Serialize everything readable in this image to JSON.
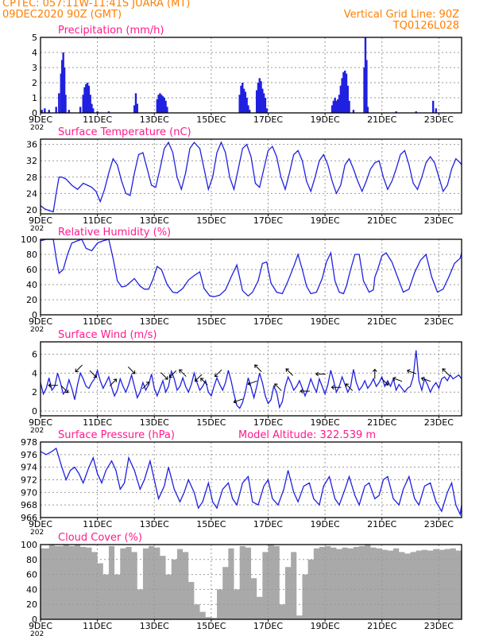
{
  "header": {
    "line1_left": "CPTEC:   057:11W-11:41S  JUARA (MT)",
    "line2_left": "09DEC2020 90Z (GMT)",
    "line1_right": "Vertical Grid Line: 90Z",
    "line2_right": "TQ0126L028",
    "header_color": "#ff7f00",
    "title_color": "#ff1a8c",
    "series_color": "#2020e0",
    "fill_color": "#a9a9a9"
  },
  "x_axis": {
    "tick_labels": [
      "9DEC",
      "11DEC",
      "13DEC",
      "15DEC",
      "17DEC",
      "19DEC",
      "21DEC",
      "23DEC"
    ],
    "tick_days": [
      0,
      2,
      4,
      6,
      8,
      10,
      12,
      14
    ],
    "year_fragment": "202",
    "range_days": [
      0,
      14.8
    ]
  },
  "chart_data": [
    {
      "id": "precip",
      "type": "bar",
      "title": "Precipitation (mm/h)",
      "ylim": [
        0,
        5
      ],
      "yticks": [
        0,
        1,
        2,
        3,
        4,
        5
      ],
      "grid": true,
      "x": [
        0.05,
        0.15,
        0.3,
        0.55,
        0.65,
        0.72,
        0.76,
        0.8,
        0.84,
        0.88,
        1.0,
        1.4,
        1.5,
        1.55,
        1.6,
        1.65,
        1.7,
        1.75,
        1.8,
        1.85,
        2.0,
        2.4,
        3.3,
        3.35,
        3.4,
        4.1,
        4.15,
        4.2,
        4.25,
        4.3,
        4.35,
        4.4,
        4.45,
        7.0,
        7.05,
        7.1,
        7.15,
        7.2,
        7.25,
        7.3,
        7.35,
        7.6,
        7.65,
        7.7,
        7.75,
        7.8,
        7.85,
        7.9,
        7.95,
        10.25,
        10.3,
        10.35,
        10.4,
        10.45,
        10.5,
        10.55,
        10.6,
        10.65,
        10.7,
        10.75,
        10.8,
        10.85,
        11.0,
        11.38,
        11.42,
        11.46,
        11.5,
        12.5,
        13.2,
        13.8,
        13.9
      ],
      "values": [
        0.2,
        0.3,
        0.2,
        0.4,
        1.3,
        2.6,
        3.5,
        4.0,
        3.0,
        1.2,
        0.2,
        0.4,
        1.2,
        1.7,
        1.9,
        2.0,
        1.8,
        1.2,
        0.6,
        0.3,
        0.1,
        0.1,
        0.5,
        1.3,
        0.6,
        0.9,
        1.2,
        1.3,
        1.2,
        1.1,
        1.0,
        0.8,
        0.4,
        1.2,
        1.8,
        2.0,
        1.6,
        1.4,
        1.0,
        0.5,
        0.2,
        1.5,
        2.0,
        2.3,
        2.1,
        1.6,
        1.3,
        1.0,
        0.3,
        0.5,
        0.8,
        1.0,
        0.8,
        0.9,
        1.2,
        1.8,
        2.3,
        2.7,
        2.8,
        2.6,
        1.8,
        0.8,
        0.2,
        3.0,
        5.0,
        3.5,
        0.4,
        0.1,
        0.1,
        0.8,
        0.3
      ]
    },
    {
      "id": "temp",
      "type": "line",
      "title": "Surface Temperature (nC)",
      "ylim": [
        19,
        37.3
      ],
      "yticks": [
        20,
        24,
        28,
        32,
        36
      ],
      "grid": true,
      "x": [
        0,
        0.15,
        0.3,
        0.45,
        0.55,
        0.65,
        0.75,
        0.9,
        1.1,
        1.3,
        1.5,
        1.65,
        1.8,
        1.95,
        2.1,
        2.25,
        2.4,
        2.55,
        2.7,
        2.85,
        3.0,
        3.15,
        3.3,
        3.45,
        3.6,
        3.75,
        3.9,
        4.05,
        4.2,
        4.35,
        4.5,
        4.65,
        4.8,
        4.95,
        5.1,
        5.25,
        5.4,
        5.6,
        5.75,
        5.9,
        6.05,
        6.2,
        6.35,
        6.5,
        6.65,
        6.8,
        6.95,
        7.1,
        7.25,
        7.4,
        7.55,
        7.7,
        7.85,
        8.0,
        8.15,
        8.3,
        8.45,
        8.6,
        8.75,
        8.9,
        9.05,
        9.2,
        9.35,
        9.5,
        9.65,
        9.8,
        9.95,
        10.1,
        10.25,
        10.4,
        10.55,
        10.7,
        10.85,
        11.0,
        11.15,
        11.3,
        11.45,
        11.6,
        11.75,
        11.9,
        12.05,
        12.2,
        12.35,
        12.5,
        12.65,
        12.8,
        12.95,
        13.1,
        13.25,
        13.4,
        13.55,
        13.7,
        13.85,
        14.0,
        14.15,
        14.3,
        14.45,
        14.6,
        14.75,
        14.8
      ],
      "values": [
        21.0,
        20.2,
        19.8,
        19.5,
        24.0,
        28.0,
        28.0,
        27.5,
        26.0,
        25.0,
        26.5,
        26.0,
        25.5,
        24.5,
        22.0,
        25.0,
        29.0,
        32.5,
        31.0,
        27.0,
        24.0,
        23.5,
        29.0,
        33.5,
        34.0,
        30.0,
        26.0,
        25.5,
        30.0,
        35.0,
        36.5,
        34.0,
        28.0,
        25.0,
        29.0,
        35.0,
        36.5,
        35.0,
        30.0,
        25.0,
        28.0,
        34.0,
        36.5,
        34.0,
        28.0,
        25.0,
        30.0,
        35.0,
        36.0,
        33.0,
        26.5,
        25.5,
        30.0,
        34.5,
        35.5,
        33.0,
        28.0,
        25.0,
        29.0,
        33.5,
        34.5,
        32.0,
        27.0,
        24.5,
        28.0,
        32.0,
        33.5,
        31.0,
        27.0,
        24.0,
        26.0,
        31.0,
        32.5,
        30.0,
        27.0,
        24.5,
        27.0,
        30.0,
        31.5,
        32.0,
        28.0,
        25.0,
        27.0,
        30.0,
        33.5,
        34.5,
        31.0,
        26.5,
        25.0,
        28.0,
        31.5,
        33.0,
        31.5,
        28.0,
        24.5,
        26.0,
        30.0,
        32.5,
        31.5,
        31.0
      ]
    },
    {
      "id": "rh",
      "type": "line",
      "title": "Relative Humidity (%)",
      "ylim": [
        0,
        100
      ],
      "yticks": [
        0,
        20,
        40,
        60,
        80,
        100
      ],
      "grid": true,
      "x": [
        0,
        0.2,
        0.45,
        0.55,
        0.65,
        0.8,
        0.95,
        1.1,
        1.3,
        1.45,
        1.6,
        1.8,
        2.0,
        2.2,
        2.4,
        2.55,
        2.7,
        2.85,
        3.0,
        3.15,
        3.3,
        3.5,
        3.65,
        3.8,
        3.95,
        4.1,
        4.25,
        4.45,
        4.65,
        4.8,
        5.0,
        5.2,
        5.4,
        5.6,
        5.75,
        5.95,
        6.1,
        6.3,
        6.5,
        6.7,
        6.9,
        7.1,
        7.3,
        7.45,
        7.65,
        7.8,
        7.95,
        8.1,
        8.3,
        8.5,
        8.7,
        8.9,
        9.05,
        9.2,
        9.35,
        9.5,
        9.7,
        9.9,
        10.05,
        10.2,
        10.35,
        10.5,
        10.65,
        10.75,
        10.9,
        11.05,
        11.2,
        11.35,
        11.55,
        11.7,
        11.75,
        11.85,
        12.0,
        12.15,
        12.35,
        12.55,
        12.75,
        12.95,
        13.15,
        13.35,
        13.55,
        13.75,
        13.95,
        14.15,
        14.35,
        14.55,
        14.75,
        14.8
      ],
      "values": [
        98,
        100,
        100,
        75,
        55,
        60,
        80,
        95,
        98,
        100,
        88,
        85,
        95,
        98,
        100,
        75,
        45,
        37,
        38,
        43,
        48,
        38,
        34,
        34,
        47,
        64,
        60,
        40,
        30,
        29,
        35,
        46,
        52,
        57,
        35,
        25,
        24,
        26,
        33,
        50,
        66,
        32,
        25,
        30,
        45,
        68,
        70,
        42,
        30,
        28,
        45,
        64,
        80,
        60,
        38,
        28,
        30,
        48,
        70,
        82,
        45,
        30,
        28,
        38,
        60,
        80,
        80,
        45,
        30,
        33,
        50,
        60,
        78,
        82,
        70,
        50,
        30,
        34,
        56,
        72,
        80,
        50,
        30,
        34,
        50,
        68,
        75,
        82
      ]
    },
    {
      "id": "wind",
      "type": "line",
      "title": "Surface Wind (m/s)",
      "ylim": [
        -0.5,
        7.3
      ],
      "yticks": [
        0,
        2,
        4,
        6
      ],
      "grid": true,
      "x": [
        0,
        0.1,
        0.2,
        0.3,
        0.4,
        0.5,
        0.6,
        0.7,
        0.8,
        0.9,
        1.0,
        1.1,
        1.2,
        1.3,
        1.4,
        1.5,
        1.6,
        1.7,
        1.8,
        1.9,
        2.0,
        2.1,
        2.2,
        2.3,
        2.4,
        2.5,
        2.6,
        2.7,
        2.8,
        2.9,
        3.0,
        3.1,
        3.2,
        3.3,
        3.4,
        3.5,
        3.6,
        3.7,
        3.8,
        3.9,
        4.0,
        4.1,
        4.2,
        4.3,
        4.4,
        4.5,
        4.6,
        4.7,
        4.8,
        4.9,
        5.0,
        5.1,
        5.2,
        5.3,
        5.4,
        5.5,
        5.6,
        5.7,
        5.8,
        5.9,
        6.0,
        6.1,
        6.2,
        6.3,
        6.4,
        6.5,
        6.6,
        6.7,
        6.8,
        6.9,
        7.0,
        7.1,
        7.2,
        7.3,
        7.4,
        7.5,
        7.6,
        7.7,
        7.8,
        7.9,
        8.0,
        8.1,
        8.2,
        8.3,
        8.4,
        8.5,
        8.6,
        8.7,
        8.8,
        8.9,
        9.0,
        9.1,
        9.2,
        9.3,
        9.4,
        9.5,
        9.6,
        9.7,
        9.8,
        9.9,
        10.0,
        10.1,
        10.2,
        10.3,
        10.4,
        10.5,
        10.6,
        10.7,
        10.8,
        10.9,
        11.0,
        11.1,
        11.2,
        11.3,
        11.4,
        11.5,
        11.6,
        11.7,
        11.8,
        11.9,
        12.0,
        12.1,
        12.2,
        12.3,
        12.4,
        12.5,
        12.6,
        12.7,
        12.8,
        12.9,
        13.0,
        13.1,
        13.2,
        13.3,
        13.4,
        13.5,
        13.6,
        13.7,
        13.8,
        13.9,
        14.0,
        14.1,
        14.2,
        14.3,
        14.4,
        14.5,
        14.6,
        14.7,
        14.8
      ],
      "values": [
        3.0,
        1.8,
        2.4,
        3.5,
        2.2,
        2.6,
        4.0,
        3.0,
        1.8,
        2.2,
        3.3,
        2.4,
        1.2,
        2.8,
        4.0,
        3.4,
        2.6,
        2.4,
        3.0,
        3.4,
        4.3,
        3.2,
        2.4,
        3.0,
        3.6,
        2.5,
        1.6,
        2.2,
        3.4,
        2.6,
        2.0,
        2.8,
        3.8,
        2.6,
        1.4,
        2.0,
        3.0,
        2.2,
        2.8,
        3.9,
        2.4,
        1.6,
        2.4,
        3.2,
        2.0,
        2.6,
        4.2,
        3.4,
        2.2,
        2.6,
        3.5,
        2.6,
        2.0,
        2.8,
        4.0,
        3.0,
        2.2,
        2.6,
        3.2,
        2.0,
        1.6,
        2.6,
        3.5,
        2.8,
        2.2,
        3.0,
        4.3,
        3.2,
        1.8,
        0.6,
        0.3,
        0.9,
        2.0,
        3.5,
        2.5,
        1.4,
        2.6,
        4.0,
        3.0,
        1.6,
        0.8,
        1.2,
        2.6,
        2.0,
        0.4,
        1.0,
        2.6,
        3.6,
        3.0,
        2.2,
        2.6,
        3.2,
        2.4,
        1.6,
        2.4,
        3.4,
        2.6,
        2.0,
        3.4,
        2.6,
        1.8,
        2.8,
        4.3,
        3.2,
        2.0,
        2.6,
        3.6,
        2.8,
        2.0,
        2.6,
        4.4,
        3.0,
        2.2,
        2.6,
        3.2,
        2.4,
        2.8,
        3.4,
        2.6,
        3.0,
        3.6,
        2.6,
        3.2,
        2.6,
        3.4,
        2.2,
        2.8,
        2.4,
        2.0,
        2.4,
        2.6,
        3.6,
        6.4,
        3.2,
        2.2,
        3.4,
        2.8,
        2.0,
        2.6,
        3.0,
        2.4,
        3.4,
        3.6,
        3.2,
        3.8,
        3.4,
        3.6,
        3.8,
        3.4
      ],
      "arrows": [
        {
          "x": 0.45,
          "dir_deg": 180
        },
        {
          "x": 0.85,
          "dir_deg": 315
        },
        {
          "x": 1.35,
          "dir_deg": 225
        },
        {
          "x": 1.85,
          "dir_deg": 315
        },
        {
          "x": 2.55,
          "dir_deg": 45
        },
        {
          "x": 3.2,
          "dir_deg": 315
        },
        {
          "x": 3.7,
          "dir_deg": 45
        },
        {
          "x": 4.35,
          "dir_deg": 315
        },
        {
          "x": 4.65,
          "dir_deg": 225
        },
        {
          "x": 5.0,
          "dir_deg": 135
        },
        {
          "x": 5.55,
          "dir_deg": 225
        },
        {
          "x": 5.75,
          "dir_deg": 135
        },
        {
          "x": 6.25,
          "dir_deg": 225
        },
        {
          "x": 6.95,
          "dir_deg": 200
        },
        {
          "x": 7.45,
          "dir_deg": 200
        },
        {
          "x": 7.65,
          "dir_deg": 135
        },
        {
          "x": 8.35,
          "dir_deg": 135
        },
        {
          "x": 8.75,
          "dir_deg": 135
        },
        {
          "x": 9.3,
          "dir_deg": 180
        },
        {
          "x": 9.85,
          "dir_deg": 180
        },
        {
          "x": 10.4,
          "dir_deg": 180
        },
        {
          "x": 10.85,
          "dir_deg": 135
        },
        {
          "x": 11.75,
          "dir_deg": 90
        },
        {
          "x": 12.1,
          "dir_deg": 315
        },
        {
          "x": 12.55,
          "dir_deg": 160
        },
        {
          "x": 13.05,
          "dir_deg": 160
        },
        {
          "x": 13.55,
          "dir_deg": 160
        },
        {
          "x": 14.25,
          "dir_deg": 135
        }
      ]
    },
    {
      "id": "pres",
      "type": "line",
      "title": "Surface Pressure (hPa)",
      "subtitle": "Model Altitude: 322.539  m",
      "ylim": [
        966,
        978
      ],
      "yticks": [
        966,
        968,
        970,
        972,
        974,
        976,
        978
      ],
      "grid": true,
      "x": [
        0,
        0.2,
        0.4,
        0.55,
        0.75,
        0.9,
        1.05,
        1.2,
        1.35,
        1.5,
        1.7,
        1.85,
        2.0,
        2.15,
        2.3,
        2.5,
        2.65,
        2.8,
        2.95,
        3.1,
        3.3,
        3.5,
        3.65,
        3.85,
        4.0,
        4.15,
        4.35,
        4.5,
        4.7,
        4.9,
        5.05,
        5.2,
        5.4,
        5.55,
        5.7,
        5.9,
        6.05,
        6.2,
        6.4,
        6.6,
        6.75,
        6.9,
        7.1,
        7.3,
        7.45,
        7.65,
        7.85,
        8.0,
        8.15,
        8.35,
        8.55,
        8.7,
        8.9,
        9.05,
        9.25,
        9.45,
        9.6,
        9.8,
        9.95,
        10.15,
        10.35,
        10.5,
        10.7,
        10.85,
        11.05,
        11.2,
        11.4,
        11.55,
        11.75,
        11.9,
        12.05,
        12.2,
        12.4,
        12.6,
        12.75,
        12.95,
        13.15,
        13.3,
        13.5,
        13.7,
        13.9,
        14.1,
        14.3,
        14.45,
        14.6,
        14.75,
        14.8
      ],
      "values": [
        976.5,
        976.0,
        976.5,
        977.0,
        974.0,
        972.0,
        973.5,
        974.0,
        973.0,
        971.5,
        974.0,
        975.5,
        973.0,
        971.5,
        973.5,
        975.0,
        973.5,
        970.5,
        971.5,
        975.5,
        973.5,
        970.5,
        972.0,
        975.0,
        972.0,
        969.0,
        971.0,
        974.0,
        970.5,
        968.5,
        970.0,
        972.0,
        970.0,
        967.5,
        968.5,
        971.5,
        968.5,
        967.5,
        970.5,
        971.5,
        969.0,
        968.0,
        971.5,
        972.5,
        968.5,
        968.0,
        971.0,
        972.0,
        969.0,
        968.0,
        970.5,
        973.5,
        970.0,
        968.5,
        971.0,
        971.5,
        969.0,
        968.0,
        971.0,
        972.5,
        969.0,
        968.0,
        970.5,
        972.5,
        969.5,
        968.0,
        971.0,
        971.5,
        969.0,
        969.5,
        972.0,
        972.5,
        969.0,
        968.0,
        970.5,
        972.5,
        969.0,
        968.0,
        971.0,
        971.5,
        968.5,
        967.0,
        970.0,
        971.5,
        968.0,
        966.5,
        968.0
      ]
    },
    {
      "id": "cloud",
      "type": "area",
      "title": "Cloud Cover (%)",
      "ylim": [
        0,
        100
      ],
      "yticks": [
        0,
        20,
        40,
        60,
        80,
        100
      ],
      "grid": true,
      "x": [
        0,
        0.3,
        0.5,
        0.8,
        1.0,
        1.2,
        1.4,
        1.6,
        1.8,
        2.0,
        2.2,
        2.4,
        2.6,
        2.8,
        3.0,
        3.2,
        3.4,
        3.6,
        3.8,
        4.0,
        4.2,
        4.4,
        4.6,
        4.8,
        5.0,
        5.2,
        5.4,
        5.6,
        5.8,
        6.0,
        6.2,
        6.4,
        6.6,
        6.8,
        7.0,
        7.2,
        7.4,
        7.6,
        7.8,
        8.0,
        8.2,
        8.4,
        8.6,
        8.8,
        9.0,
        9.2,
        9.4,
        9.6,
        9.8,
        10.0,
        10.2,
        10.4,
        10.6,
        10.8,
        11.0,
        11.2,
        11.4,
        11.6,
        11.8,
        12.0,
        12.2,
        12.4,
        12.6,
        12.8,
        13.0,
        13.2,
        13.4,
        13.6,
        13.8,
        14.0,
        14.2,
        14.4,
        14.6,
        14.8
      ],
      "values": [
        95,
        100,
        98,
        100,
        98,
        100,
        97,
        96,
        90,
        75,
        60,
        98,
        60,
        95,
        97,
        90,
        40,
        95,
        98,
        96,
        85,
        60,
        80,
        94,
        90,
        50,
        20,
        10,
        3,
        2,
        40,
        70,
        95,
        40,
        98,
        96,
        55,
        30,
        90,
        100,
        98,
        20,
        70,
        90,
        5,
        60,
        80,
        95,
        97,
        98,
        96,
        94,
        96,
        95,
        97,
        98,
        100,
        96,
        95,
        93,
        92,
        95,
        90,
        88,
        90,
        92,
        93,
        92,
        94,
        93,
        94,
        95,
        92,
        94
      ]
    }
  ]
}
